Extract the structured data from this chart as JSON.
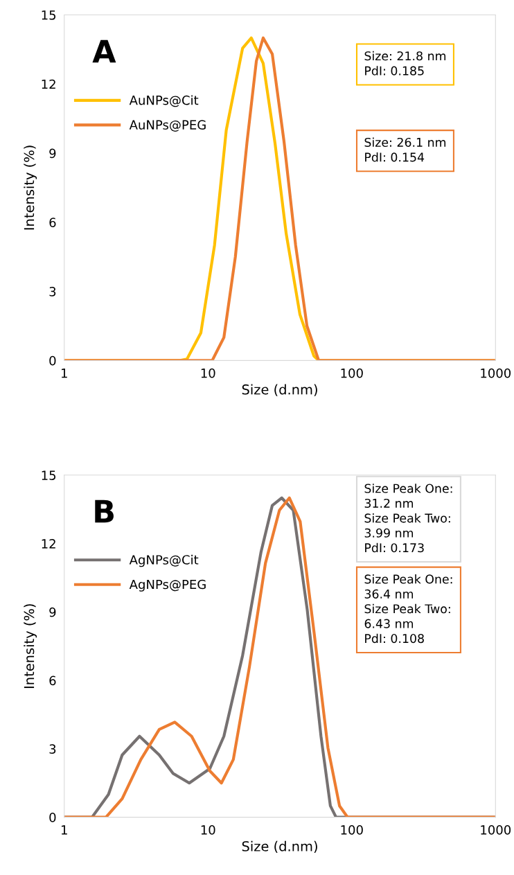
{
  "chart_data": [
    {
      "type": "line",
      "xlabel": "Size (d.nm)",
      "ylabel": "Intensity (%)",
      "log": "x",
      "xlim": [
        1,
        1000
      ],
      "xticks": [
        1,
        10,
        100,
        1000
      ],
      "ylim": [
        0,
        15
      ],
      "yticks": [
        0,
        3,
        6,
        9,
        12,
        15
      ],
      "grid": false,
      "legend": "top left",
      "marker": "none",
      "line_style": "solid",
      "annotations": [
        "A",
        "Size: 21.8 nm\nPdI: 0.185",
        "Size: 26.1 nm\nPdI: 0.154"
      ],
      "series": [
        {
          "name": "AuNPs@Cit",
          "color": "#ffc000",
          "x": [
            1,
            6.4,
            7.14,
            8.92,
            11.1,
            13.4,
            17.4,
            20.0,
            24.2,
            29.3,
            35.0,
            43.6,
            54.5,
            58.9,
            1000
          ],
          "values": [
            0,
            0,
            0.06,
            1.2,
            5.0,
            10.0,
            13.55,
            14.0,
            12.9,
            9.4,
            5.5,
            2.0,
            0.2,
            0,
            0
          ]
        },
        {
          "name": "AuNPs@PEG",
          "color": "#ed7d31",
          "x": [
            1,
            10.7,
            12.9,
            15.5,
            18.7,
            21.7,
            24.2,
            28.0,
            33.8,
            40.7,
            48.8,
            58.9,
            1000
          ],
          "values": [
            0,
            0,
            1.0,
            4.5,
            9.5,
            13.0,
            14.0,
            13.3,
            9.5,
            5.0,
            1.5,
            0,
            0
          ]
        }
      ]
    },
    {
      "type": "line",
      "xlabel": "Size (d.nm)",
      "ylabel": "Intensity (%)",
      "log": "x",
      "xlim": [
        1,
        1000
      ],
      "xticks": [
        1,
        10,
        100,
        1000
      ],
      "ylim": [
        0,
        15
      ],
      "yticks": [
        0,
        3,
        6,
        9,
        12,
        15
      ],
      "grid": false,
      "legend": "top left",
      "marker": "none",
      "line_style": "solid",
      "annotations": [
        "B",
        "Size Peak One:\n31.2 nm\nSize Peak Two:\n3.99 nm\nPdI: 0.173",
        "Size Peak One:\n36.4 nm\nSize Peak Two:\n6.43 nm\nPdI: 0.108"
      ],
      "series": [
        {
          "name": "AgNPs@Cit",
          "color": "#767171",
          "x": [
            1,
            1.56,
            2.03,
            2.53,
            3.34,
            4.58,
            5.72,
            7.41,
            10.3,
            12.9,
            17.4,
            23.4,
            28.0,
            32.6,
            39.2,
            49.0,
            61.1,
            71.0,
            77.8,
            1000
          ],
          "values": [
            0,
            0,
            1.0,
            2.73,
            3.55,
            2.73,
            1.92,
            1.5,
            2.13,
            3.55,
            7.09,
            11.64,
            13.67,
            14.0,
            13.46,
            9.11,
            3.55,
            0.5,
            0,
            0
          ]
        },
        {
          "name": "AgNPs@PEG",
          "color": "#ed7d31",
          "x": [
            1,
            1.95,
            2.53,
            3.41,
            4.58,
            5.87,
            7.69,
            10.3,
            12.4,
            15.0,
            19.4,
            25.1,
            31.4,
            36.8,
            43.8,
            54.7,
            68.3,
            82.2,
            93.6,
            1000
          ],
          "values": [
            0,
            0,
            0.81,
            2.53,
            3.85,
            4.17,
            3.55,
            2.03,
            1.5,
            2.53,
            6.58,
            11.14,
            13.46,
            14.0,
            12.96,
            8.1,
            3.04,
            0.5,
            0,
            0
          ]
        }
      ]
    }
  ]
}
